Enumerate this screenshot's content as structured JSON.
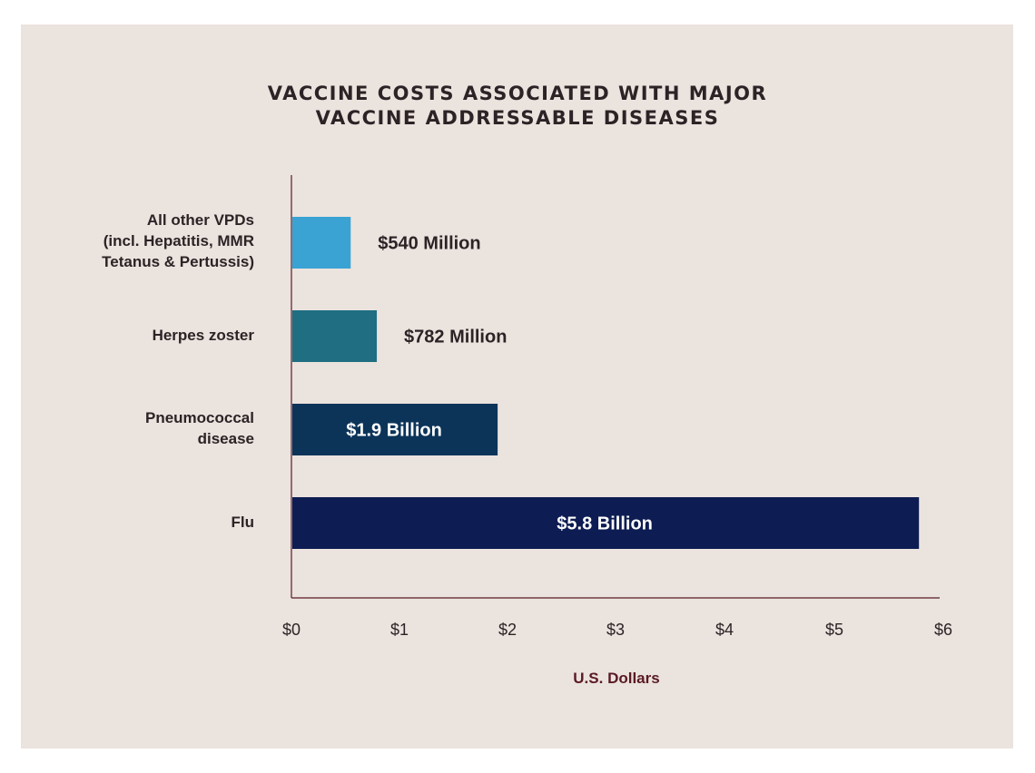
{
  "chart_data": {
    "type": "bar",
    "orientation": "horizontal",
    "title": [
      "VACCINE COSTS ASSOCIATED WITH MAJOR",
      "VACCINE ADDRESSABLE DISEASES"
    ],
    "xlabel": "U.S. Dollars",
    "xlim": [
      0,
      6
    ],
    "ticks": [
      "$0",
      "$1",
      "$2",
      "$3",
      "$4",
      "$5",
      "$6"
    ],
    "grid": false,
    "categories": [
      [
        "All other VPDs",
        "(incl. Hepatitis, MMR",
        "Tetanus & Pertussis)"
      ],
      [
        "Herpes zoster"
      ],
      [
        "Pneumococcal",
        "disease"
      ],
      [
        "Flu"
      ]
    ],
    "values": [
      0.54,
      0.782,
      1.9,
      5.8
    ],
    "data_labels": [
      "$540 Million",
      "$782 Million",
      "$1.9 Billion",
      "$5.8 Billion"
    ],
    "label_inside": [
      false,
      false,
      true,
      true
    ],
    "colors": [
      "#3aa3d4",
      "#1f6e82",
      "#0c3459",
      "#0d1c52"
    ],
    "axis_color": "#5a1a24",
    "label_color_outside": "#2c2326",
    "label_color_inside": "#ffffff"
  }
}
